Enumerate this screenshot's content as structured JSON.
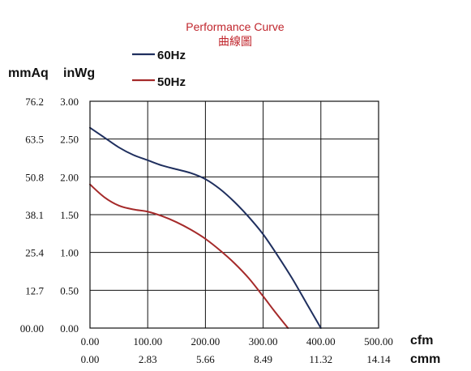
{
  "chart_data": {
    "type": "line",
    "title": "Performance Curve",
    "subtitle": "曲線圖",
    "y_left_label": "mmAq",
    "y_right_label": "inWg",
    "x_top_label": "cfm",
    "x_bottom_label": "cmm",
    "x_ticks_cfm": [
      "0.00",
      "100.00",
      "200.00",
      "300.00",
      "400.00",
      "500.00"
    ],
    "x_ticks_cmm": [
      "0.00",
      "2.83",
      "5.66",
      "8.49",
      "11.32",
      "14.14"
    ],
    "y_ticks_inwg": [
      "0.00",
      "0.50",
      "1.00",
      "1.50",
      "2.00",
      "2.50",
      "3.00"
    ],
    "y_ticks_mmaq": [
      "00.00",
      "12.7",
      "25.4",
      "38.1",
      "50.8",
      "63.5",
      "76.2"
    ],
    "xlim": [
      0,
      500
    ],
    "ylim": [
      0,
      3
    ],
    "grid": true,
    "legend_position": "top-left",
    "series": [
      {
        "name": "60Hz",
        "color": "#1f2f5e",
        "x": [
          0,
          25,
          50,
          75,
          100,
          125,
          150,
          175,
          200,
          225,
          250,
          275,
          300,
          325,
          350,
          375,
          400
        ],
        "y": [
          2.65,
          2.52,
          2.39,
          2.29,
          2.22,
          2.15,
          2.1,
          2.05,
          1.97,
          1.84,
          1.67,
          1.47,
          1.24,
          0.96,
          0.66,
          0.33,
          0.0
        ]
      },
      {
        "name": "50Hz",
        "color": "#a52a2a",
        "x": [
          0,
          25,
          50,
          75,
          100,
          125,
          150,
          175,
          200,
          225,
          250,
          275,
          300,
          320,
          343
        ],
        "y": [
          1.9,
          1.73,
          1.62,
          1.57,
          1.54,
          1.48,
          1.4,
          1.3,
          1.18,
          1.03,
          0.86,
          0.66,
          0.42,
          0.22,
          0.0
        ]
      }
    ]
  }
}
